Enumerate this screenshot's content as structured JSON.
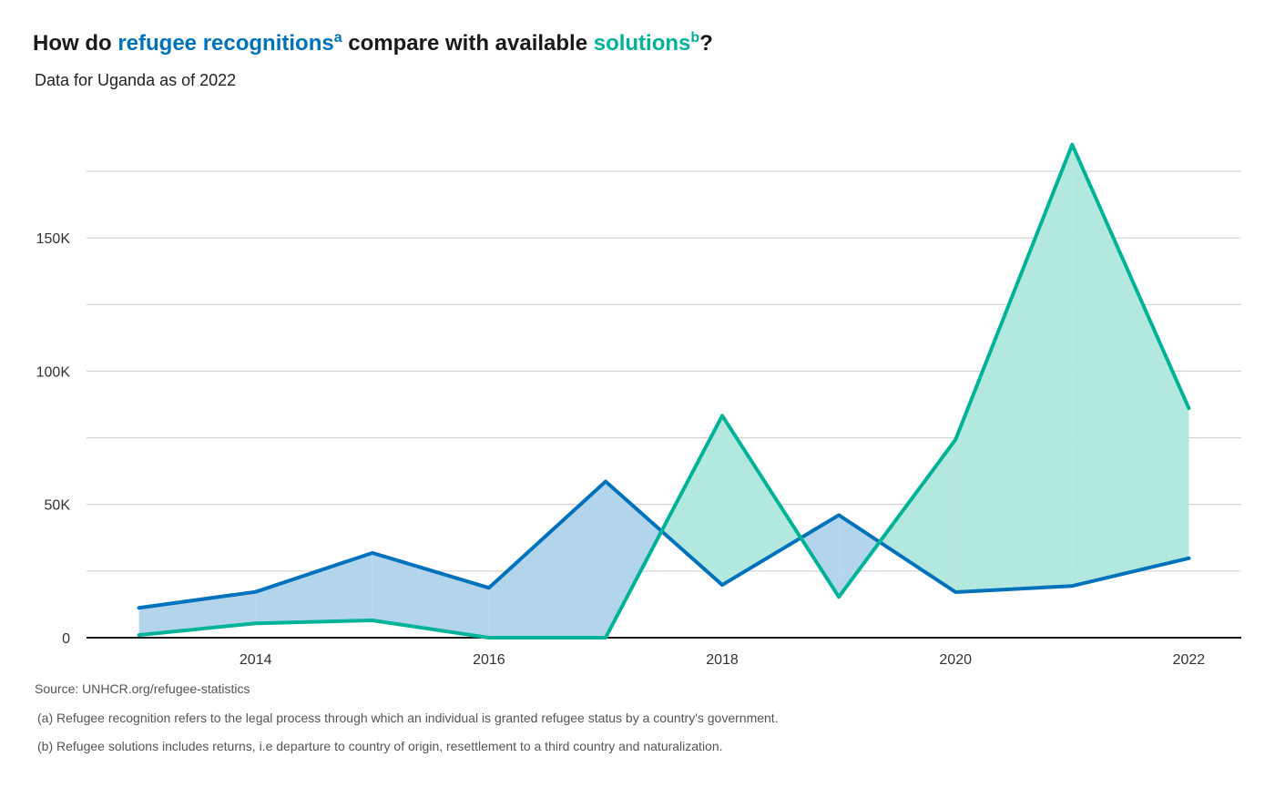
{
  "title": {
    "prefix": "How do ",
    "recognitions": "refugee recognitions",
    "sup_a": "a",
    "middle": " compare with available ",
    "solutions": "solutions",
    "sup_b": "b",
    "suffix": "?"
  },
  "subtitle": "Data  for Uganda as of 2022",
  "source": "Source: UNHCR.org/refugee-statistics",
  "note_a": "(a) Refugee recognition refers to the legal process through which an individual is granted refugee status by a country's government.",
  "note_b": "(b) Refugee solutions includes returns, i.e departure to country of origin, resettlement to a third country and naturalization.",
  "colors": {
    "recognitions": "#0072bc",
    "solutions": "#00b398",
    "recognitions_fill": "#b3d5ec",
    "solutions_fill": "#b3e8df",
    "grid": "#cccccc",
    "axis": "#1a1a1a"
  },
  "chart_data": {
    "type": "line",
    "x": [
      2013,
      2014,
      2015,
      2016,
      2017,
      2018,
      2019,
      2020,
      2021,
      2022
    ],
    "series": [
      {
        "name": "refugee recognitions",
        "values": [
          11200,
          17200,
          31800,
          18700,
          58600,
          19800,
          46000,
          17100,
          19400,
          29800
        ]
      },
      {
        "name": "solutions",
        "values": [
          1000,
          5400,
          6500,
          0,
          0,
          83300,
          15300,
          74300,
          185000,
          86100
        ]
      }
    ],
    "x_ticks": [
      2014,
      2016,
      2018,
      2020,
      2022
    ],
    "x_tick_labels": [
      "2014",
      "2016",
      "2018",
      "2020",
      "2022"
    ],
    "y_ticks": [
      0,
      50000,
      100000,
      150000
    ],
    "y_tick_labels": [
      "0",
      "50K",
      "100K",
      "150K"
    ],
    "y_gridlines": [
      0,
      25000,
      50000,
      75000,
      100000,
      125000,
      150000,
      175000
    ],
    "xlim": [
      2012.55,
      2022.45
    ],
    "ylim": [
      0,
      175000
    ],
    "grid": true,
    "fill_between": true
  }
}
